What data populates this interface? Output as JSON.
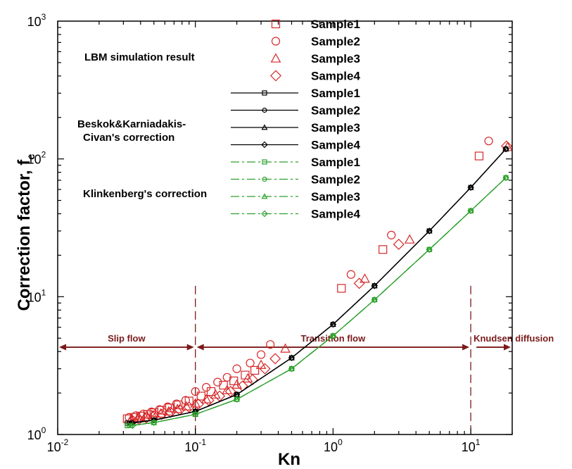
{
  "chart_data": {
    "type": "scatter",
    "xlabel": "Kn",
    "ylabel_main": "Correction factor, f",
    "ylabel_sub": "c",
    "x_scale": "log",
    "y_scale": "log",
    "xlim": [
      0.01,
      20
    ],
    "ylim": [
      1,
      1000
    ],
    "x_ticks": [
      {
        "base": "10",
        "exp": "-2",
        "value": 0.01
      },
      {
        "base": "10",
        "exp": "-1",
        "value": 0.1
      },
      {
        "base": "10",
        "exp": "0",
        "value": 1
      },
      {
        "base": "10",
        "exp": "1",
        "value": 10
      }
    ],
    "y_ticks": [
      {
        "base": "10",
        "exp": "0",
        "value": 1
      },
      {
        "base": "10",
        "exp": "1",
        "value": 10
      },
      {
        "base": "10",
        "exp": "2",
        "value": 100
      },
      {
        "base": "10",
        "exp": "3",
        "value": 1000
      }
    ],
    "legend": {
      "placement": "top-center",
      "groups": [
        {
          "label": "LBM simulation result",
          "entries": [
            "Sample1",
            "Sample2",
            "Sample3",
            "Sample4"
          ]
        },
        {
          "label_lines": [
            "Beskok&Karniadakis-",
            "Civan's correction"
          ],
          "entries": [
            "Sample1",
            "Sample2",
            "Sample3",
            "Sample4"
          ]
        },
        {
          "label": "Klinkenberg's correction",
          "entries": [
            "Sample1",
            "Sample2",
            "Sample3",
            "Sample4"
          ]
        }
      ]
    },
    "regimes": [
      {
        "label": "Slip flow",
        "from": 0.01,
        "to": 0.1
      },
      {
        "label": "Transition flow",
        "from": 0.1,
        "to": 10
      },
      {
        "label": "Knudsen diffusion",
        "from": 10,
        "to": 20
      }
    ],
    "regime_arrow_y": 4.3,
    "divider_x": [
      0.1,
      10
    ],
    "colors": {
      "lbm": "#d62728",
      "beskok": "#000000",
      "klink": "#2ca02c",
      "regime": "#7a1a1a"
    },
    "series": [
      {
        "group": "LBM simulation result",
        "name": "Sample1",
        "marker": "square",
        "color": "#d62728",
        "x": [
          0.032,
          0.036,
          0.04,
          0.045,
          0.05,
          0.057,
          0.065,
          0.075,
          0.09,
          0.11,
          0.13,
          0.16,
          0.19,
          0.23,
          0.27,
          1.15,
          2.3,
          11.5
        ],
        "y": [
          1.3,
          1.33,
          1.36,
          1.4,
          1.44,
          1.5,
          1.56,
          1.64,
          1.75,
          1.9,
          2.05,
          2.28,
          2.45,
          2.7,
          2.92,
          11.5,
          22,
          105
        ]
      },
      {
        "group": "LBM simulation result",
        "name": "Sample2",
        "marker": "circle",
        "color": "#d62728",
        "x": [
          0.033,
          0.037,
          0.042,
          0.048,
          0.055,
          0.063,
          0.073,
          0.085,
          0.1,
          0.12,
          0.145,
          0.17,
          0.2,
          0.25,
          0.3,
          0.35,
          1.35,
          2.65,
          13.5
        ],
        "y": [
          1.33,
          1.37,
          1.41,
          1.46,
          1.52,
          1.59,
          1.67,
          1.77,
          2.05,
          2.2,
          2.4,
          2.6,
          3.0,
          3.3,
          3.8,
          4.5,
          14.5,
          28,
          135
        ]
      },
      {
        "group": "LBM simulation result",
        "name": "Sample3",
        "marker": "triangle",
        "color": "#d62728",
        "x": [
          0.034,
          0.038,
          0.043,
          0.049,
          0.056,
          0.064,
          0.074,
          0.086,
          0.1,
          0.12,
          0.14,
          0.17,
          0.2,
          0.24,
          0.3,
          0.45,
          1.7,
          3.6,
          18.5
        ],
        "y": [
          1.28,
          1.31,
          1.34,
          1.38,
          1.42,
          1.47,
          1.53,
          1.6,
          1.68,
          1.8,
          1.95,
          2.1,
          2.3,
          2.55,
          3.2,
          4.2,
          13.5,
          26,
          122
        ]
      },
      {
        "group": "LBM simulation result",
        "name": "Sample4",
        "marker": "diamond",
        "color": "#d62728",
        "x": [
          0.035,
          0.039,
          0.044,
          0.05,
          0.057,
          0.066,
          0.077,
          0.09,
          0.105,
          0.125,
          0.15,
          0.18,
          0.22,
          0.26,
          0.32,
          0.38,
          1.55,
          3.0,
          18.2
        ],
        "y": [
          1.26,
          1.29,
          1.32,
          1.36,
          1.4,
          1.45,
          1.51,
          1.58,
          1.66,
          1.77,
          1.9,
          2.05,
          2.25,
          2.5,
          3.0,
          3.55,
          12.5,
          24,
          124
        ]
      },
      {
        "group": "Beskok&Karniadakis-Civan's correction",
        "name": "Sample1",
        "marker": "square",
        "color": "#000000",
        "x": [
          0.032,
          0.05,
          0.1,
          0.2,
          0.5,
          1.0,
          2.0,
          5.0,
          10.0,
          18.0
        ],
        "y": [
          1.21,
          1.27,
          1.47,
          1.95,
          3.6,
          6.3,
          12.0,
          30.0,
          62.0,
          118.0
        ]
      },
      {
        "group": "Beskok&Karniadakis-Civan's correction",
        "name": "Sample2",
        "marker": "circle",
        "color": "#000000",
        "x": [
          0.033,
          0.05,
          0.1,
          0.2,
          0.5,
          1.0,
          2.0,
          5.0,
          10.0,
          18.0
        ],
        "y": [
          1.21,
          1.27,
          1.47,
          1.95,
          3.6,
          6.3,
          12.0,
          30.0,
          62.0,
          118.0
        ]
      },
      {
        "group": "Beskok&Karniadakis-Civan's correction",
        "name": "Sample3",
        "marker": "triangle",
        "color": "#000000",
        "x": [
          0.034,
          0.05,
          0.1,
          0.2,
          0.5,
          1.0,
          2.0,
          5.0,
          10.0,
          18.0
        ],
        "y": [
          1.21,
          1.27,
          1.47,
          1.95,
          3.6,
          6.3,
          12.0,
          30.0,
          62.0,
          118.0
        ]
      },
      {
        "group": "Beskok&Karniadakis-Civan's correction",
        "name": "Sample4",
        "marker": "diamond",
        "color": "#000000",
        "x": [
          0.035,
          0.05,
          0.1,
          0.2,
          0.5,
          1.0,
          2.0,
          5.0,
          10.0,
          18.0
        ],
        "y": [
          1.21,
          1.27,
          1.47,
          1.95,
          3.6,
          6.3,
          12.0,
          30.0,
          62.0,
          118.0
        ]
      },
      {
        "group": "Klinkenberg's correction",
        "name": "Sample1",
        "marker": "square",
        "color": "#2ca02c",
        "x": [
          0.032,
          0.05,
          0.1,
          0.2,
          0.5,
          1.0,
          2.0,
          5.0,
          10.0,
          18.0
        ],
        "y": [
          1.16,
          1.22,
          1.4,
          1.8,
          3.0,
          5.2,
          9.5,
          22.0,
          42.0,
          73.0
        ]
      },
      {
        "group": "Klinkenberg's correction",
        "name": "Sample2",
        "marker": "circle",
        "color": "#2ca02c",
        "x": [
          0.033,
          0.05,
          0.1,
          0.2,
          0.5,
          1.0,
          2.0,
          5.0,
          10.0,
          18.0
        ],
        "y": [
          1.16,
          1.22,
          1.4,
          1.8,
          3.0,
          5.2,
          9.5,
          22.0,
          42.0,
          73.0
        ]
      },
      {
        "group": "Klinkenberg's correction",
        "name": "Sample3",
        "marker": "triangle",
        "color": "#2ca02c",
        "x": [
          0.034,
          0.05,
          0.1,
          0.2,
          0.5,
          1.0,
          2.0,
          5.0,
          10.0,
          18.0
        ],
        "y": [
          1.16,
          1.22,
          1.4,
          1.8,
          3.0,
          5.2,
          9.5,
          22.0,
          42.0,
          73.0
        ]
      },
      {
        "group": "Klinkenberg's correction",
        "name": "Sample4",
        "marker": "diamond",
        "color": "#2ca02c",
        "x": [
          0.035,
          0.05,
          0.1,
          0.2,
          0.5,
          1.0,
          2.0,
          5.0,
          10.0,
          18.0
        ],
        "y": [
          1.16,
          1.22,
          1.4,
          1.8,
          3.0,
          5.2,
          9.5,
          22.0,
          42.0,
          73.0
        ]
      }
    ]
  }
}
